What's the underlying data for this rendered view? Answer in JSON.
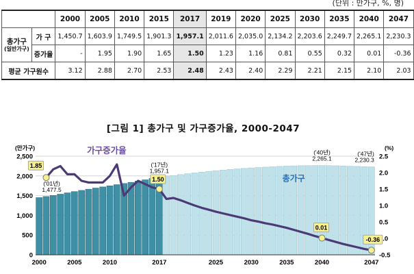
{
  "table": {
    "unit_note": "(단위 : 만가구, %, 명)",
    "years": [
      "2000",
      "2005",
      "2010",
      "2015",
      "2017",
      "2019",
      "2020",
      "2025",
      "2030",
      "2035",
      "2040",
      "2047"
    ],
    "highlight_year": "2017",
    "row_group_main": "총가구",
    "row_group_sub": "(일반가구)",
    "rows": [
      {
        "label": "가 구",
        "values": [
          "1,450.7",
          "1,603.9",
          "1,749.5",
          "1,901.3",
          "1,957.1",
          "2,011.6",
          "2,035.0",
          "2,134.2",
          "2,203.6",
          "2,249.7",
          "2,265.1",
          "2,230.3"
        ]
      },
      {
        "label": "증가율",
        "values": [
          "-",
          "1.95",
          "1.90",
          "1.65",
          "1.50",
          "1.23",
          "1.16",
          "0.81",
          "0.55",
          "0.32",
          "0.01",
          "-0.36"
        ]
      }
    ],
    "avg_row": {
      "label": "평균 가구원수",
      "values": [
        "3.12",
        "2.88",
        "2.70",
        "2.53",
        "2.48",
        "2.43",
        "2.40",
        "2.29",
        "2.21",
        "2.15",
        "2.10",
        "2.03"
      ]
    }
  },
  "figure_title": "[그림 1] 총가구 및 가구증가율, 2000-2047",
  "colors": {
    "bar_actual": "#3f8fa5",
    "bar_projected": "#bfe1ea",
    "line": "#4c3a76",
    "marker": "#f6f08e",
    "bar_label": "#2d6fb0",
    "line_label": "#6b4ea0"
  },
  "chart_data": {
    "type": "bar",
    "x": [
      2000,
      2001,
      2002,
      2003,
      2004,
      2005,
      2006,
      2007,
      2008,
      2009,
      2010,
      2011,
      2012,
      2013,
      2014,
      2015,
      2016,
      2017,
      2018,
      2019,
      2020,
      2021,
      2022,
      2023,
      2024,
      2025,
      2026,
      2027,
      2028,
      2029,
      2030,
      2031,
      2032,
      2033,
      2034,
      2035,
      2036,
      2037,
      2038,
      2039,
      2040,
      2041,
      2042,
      2043,
      2044,
      2045,
      2046,
      2047
    ],
    "actual_through": 2017,
    "series": [
      {
        "name": "총가구",
        "axis": "left",
        "values": [
          1450.7,
          1477.5,
          1506,
          1537,
          1571,
          1603.9,
          1633,
          1664,
          1693,
          1721,
          1749.5,
          1779,
          1808,
          1837,
          1869,
          1901.3,
          1936,
          1957.1,
          1985,
          2011.6,
          2035.0,
          2056,
          2076,
          2096,
          2116,
          2134.2,
          2149,
          2164,
          2178,
          2191,
          2203.6,
          2214,
          2223,
          2232,
          2241,
          2249.7,
          2255,
          2259,
          2262,
          2264,
          2265.1,
          2262,
          2258,
          2253,
          2247,
          2241,
          2235,
          2230.3
        ]
      },
      {
        "name": "가구증가율",
        "axis": "right",
        "values": [
          null,
          1.85,
          2.1,
          2.2,
          1.95,
          1.95,
          1.75,
          1.7,
          1.7,
          1.7,
          1.9,
          2.25,
          1.3,
          1.55,
          1.75,
          1.65,
          1.55,
          1.5,
          1.2,
          1.23,
          1.16,
          1.08,
          1.0,
          0.93,
          0.87,
          0.81,
          0.76,
          0.71,
          0.66,
          0.61,
          0.55,
          0.51,
          0.46,
          0.42,
          0.37,
          0.32,
          0.26,
          0.2,
          0.14,
          0.07,
          0.01,
          -0.05,
          -0.11,
          -0.17,
          -0.22,
          -0.27,
          -0.32,
          -0.36
        ]
      }
    ],
    "ylabel_left": "(만가구)",
    "ylabel_right": "(%)",
    "yticks_left": [
      "0",
      "500",
      "1,000",
      "1,500",
      "2,000",
      "2,500"
    ],
    "yticks_right": [
      "-0.5",
      "0.0",
      "0.5",
      "1.0",
      "1.5",
      "2.0",
      "2.5"
    ],
    "ylim_left": [
      0,
      2500
    ],
    "ylim_right": [
      -0.5,
      2.5
    ],
    "xticks": [
      "2000",
      "2005",
      "2010",
      "2017",
      "2025",
      "2030",
      "2035",
      "2040",
      "2047"
    ],
    "grid": true,
    "annotations": {
      "line_name": "가구증가율",
      "bar_name": "총가구",
      "bar_callouts": [
        {
          "year": 2001,
          "tag": "('01년)",
          "value": "1,477.5"
        },
        {
          "year": 2017,
          "tag": "('17년)",
          "value": "1,957.1"
        },
        {
          "year": 2040,
          "tag": "('40년)",
          "value": "2,265.1"
        },
        {
          "year": 2047,
          "tag": "('47년)",
          "value": "2,230.3"
        }
      ],
      "rate_callouts": [
        {
          "year": 2001,
          "value": "1.85"
        },
        {
          "year": 2017,
          "value": "1.50"
        },
        {
          "year": 2040,
          "value": "0.01"
        },
        {
          "year": 2047,
          "value": "-0.36"
        }
      ]
    }
  }
}
